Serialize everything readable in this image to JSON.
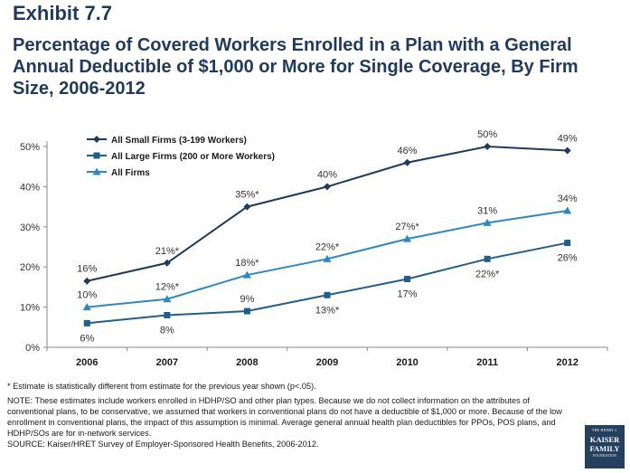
{
  "exhibit_label": "Exhibit 7.7",
  "title": "Percentage of Covered Workers Enrolled in a Plan with a General Annual Deductible of $1,000 or More for Single Coverage, By Firm Size, 2006-2012",
  "footnotes": {
    "asterisk": "* Estimate is statistically different from estimate for the previous year shown (p<.05).",
    "note": "NOTE: These estimates include workers enrolled in HDHP/SO and other plan types.  Because we do not collect information on the attributes of conventional plans, to be conservative, we assumed that workers in conventional plans do not have a deductible of $1,000 or more.  Because of the low enrollment in conventional plans, the impact of this assumption is minimal.  Average general annual health plan deductibles for PPOs, POS plans, and HDHP/SOs are for in-network services.",
    "source": "SOURCE: Kaiser/HRET Survey of Employer-Sponsored Health Benefits, 2006-2012."
  },
  "logo": {
    "line1": "THE HENRY J.",
    "line2a": "KAISER",
    "line2b": "FAMILY",
    "line3": "FOUNDATION"
  },
  "chart_data": {
    "type": "line",
    "categories": [
      "2006",
      "2007",
      "2008",
      "2009",
      "2010",
      "2011",
      "2012"
    ],
    "ylim": [
      0,
      50
    ],
    "yticks": [
      "0%",
      "10%",
      "20%",
      "30%",
      "40%",
      "50%"
    ],
    "ytick_values": [
      0,
      10,
      20,
      30,
      40,
      50
    ],
    "grid": false,
    "legend_position": "top-left",
    "series": [
      {
        "name": "All Small Firms (3-199 Workers)",
        "values": [
          16.5,
          21,
          35,
          40,
          46,
          50,
          49
        ],
        "labels": [
          "16%",
          "21%*",
          "35%*",
          "40%",
          "46%",
          "50%",
          "49%"
        ],
        "label_side": [
          "above",
          "above",
          "above",
          "above",
          "above",
          "above",
          "above"
        ],
        "color": "#1f3a5f",
        "marker": "diamond"
      },
      {
        "name": "All Large Firms (200 or More Workers)",
        "values": [
          6,
          8,
          9,
          13,
          17,
          22,
          26
        ],
        "labels": [
          "6%",
          "8%",
          "9%",
          "13%*",
          "17%",
          "22%*",
          "26%"
        ],
        "label_side": [
          "below",
          "below",
          "above",
          "below",
          "below",
          "below",
          "below"
        ],
        "color": "#1f5f8f",
        "marker": "square"
      },
      {
        "name": "All Firms",
        "values": [
          10,
          12,
          18,
          22,
          27,
          31,
          34
        ],
        "labels": [
          "10%",
          "12%*",
          "18%*",
          "22%*",
          "27%*",
          "31%",
          "34%"
        ],
        "label_side": [
          "above",
          "above",
          "above",
          "above",
          "above",
          "above",
          "above"
        ],
        "color": "#2b88c8",
        "marker": "triangle"
      }
    ]
  }
}
